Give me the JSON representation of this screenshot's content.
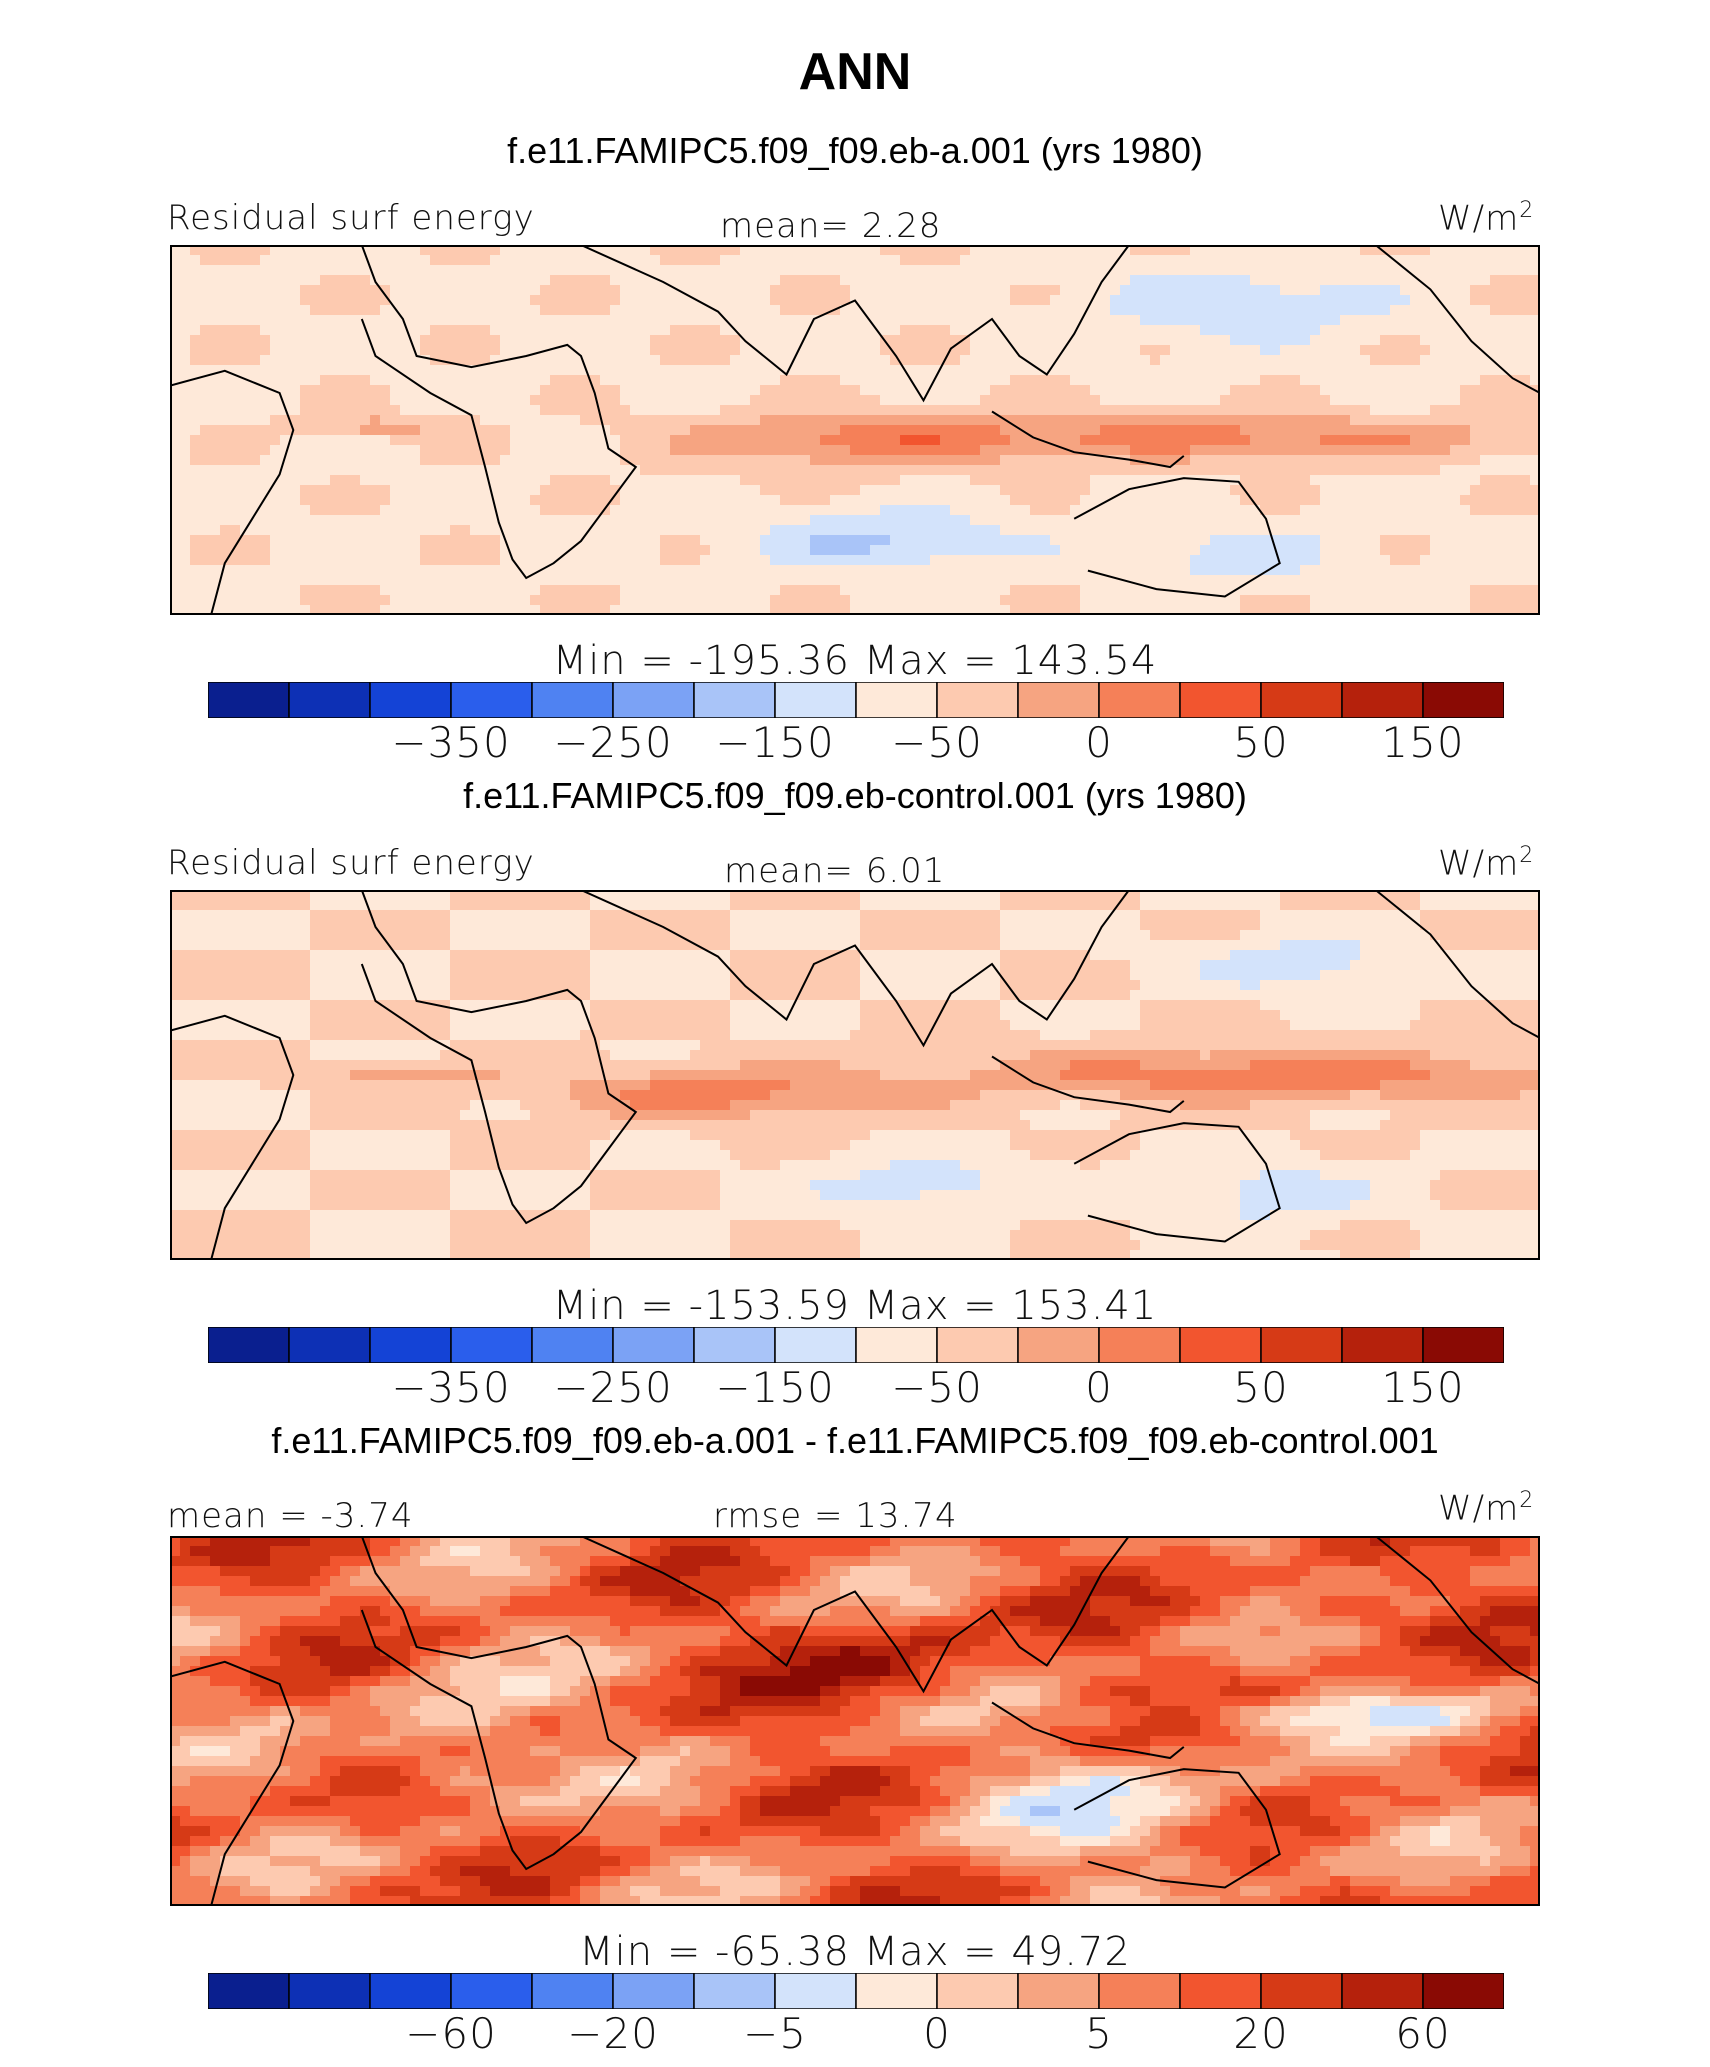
{
  "title": "ANN",
  "palette": [
    "#0a1f8f",
    "#0d30b5",
    "#1443d6",
    "#2a5eec",
    "#4f82f2",
    "#7ba2f5",
    "#a9c4f8",
    "#d3e3fb",
    "#fee9d9",
    "#fdcab0",
    "#f6a481",
    "#f58058",
    "#f2552f",
    "#d63a16",
    "#b5210c",
    "#8a0a04"
  ],
  "panels": [
    {
      "case_title": "f.e11.FAMIPC5.f09_f09.eb-a.001 (yrs 1980)",
      "left_label": "Residual surf energy",
      "center_label": "mean=   2.28",
      "units": "W/m",
      "units_sup": "2",
      "minmax": "Min = -195.36 Max = 143.54",
      "ticks": [
        "-350",
        "-250",
        "-150",
        "-50",
        "0",
        "50",
        "150"
      ],
      "field": "a"
    },
    {
      "case_title": "f.e11.FAMIPC5.f09_f09.eb-control.001 (yrs 1980)",
      "left_label": "Residual surf energy",
      "center_label": "mean=   6.01",
      "units": "W/m",
      "units_sup": "2",
      "minmax": "Min = -153.59 Max = 153.41",
      "ticks": [
        "-350",
        "-250",
        "-150",
        "-50",
        "0",
        "50",
        "150"
      ],
      "field": "b"
    },
    {
      "case_title": "f.e11.FAMIPC5.f09_f09.eb-a.001 - f.e11.FAMIPC5.f09_f09.eb-control.001",
      "left_label": "mean =  -3.74",
      "center_label": "rmse =  13.74",
      "units": "W/m",
      "units_sup": "2",
      "minmax": "Min = -65.38 Max =  49.72",
      "ticks": [
        "-60",
        "-20",
        "-5",
        "0",
        "5",
        "20",
        "60"
      ],
      "field": "diff"
    }
  ]
}
